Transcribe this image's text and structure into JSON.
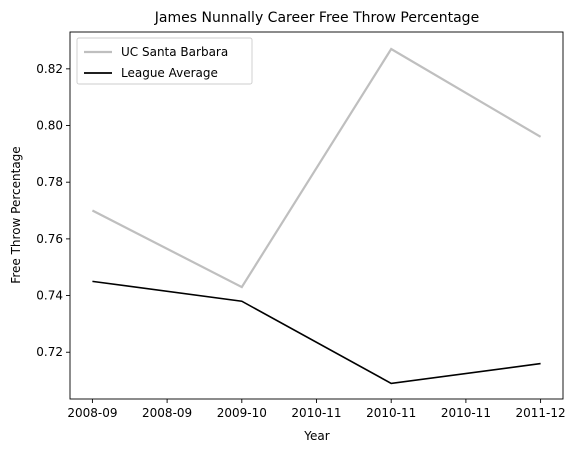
{
  "chart_data": {
    "type": "line",
    "title": "James Nunnally Career Free Throw Percentage",
    "xlabel": "Year",
    "ylabel": "Free Throw Percentage",
    "x": [
      0,
      1,
      2,
      3
    ],
    "x_ticks": [
      {
        "value": 0,
        "label": "2008-09"
      },
      {
        "value": 0.5,
        "label": "2008-09"
      },
      {
        "value": 1,
        "label": "2009-10"
      },
      {
        "value": 1.5,
        "label": "2010-11"
      },
      {
        "value": 2,
        "label": "2010-11"
      },
      {
        "value": 2.5,
        "label": "2010-11"
      },
      {
        "value": 3,
        "label": "2011-12"
      }
    ],
    "xlim": [
      -0.15,
      3.15
    ],
    "ylim": [
      0.7035,
      0.833
    ],
    "y_ticks": [
      0.72,
      0.74,
      0.76,
      0.78,
      0.8,
      0.82
    ],
    "grid": false,
    "legend_position": "top-left",
    "series": [
      {
        "name": "UC Santa Barbara",
        "values": [
          0.77,
          0.743,
          0.827,
          0.796
        ],
        "color": "#bfbfbf"
      },
      {
        "name": "League Average",
        "values": [
          0.745,
          0.738,
          0.709,
          0.716
        ],
        "color": "#000000"
      }
    ]
  }
}
